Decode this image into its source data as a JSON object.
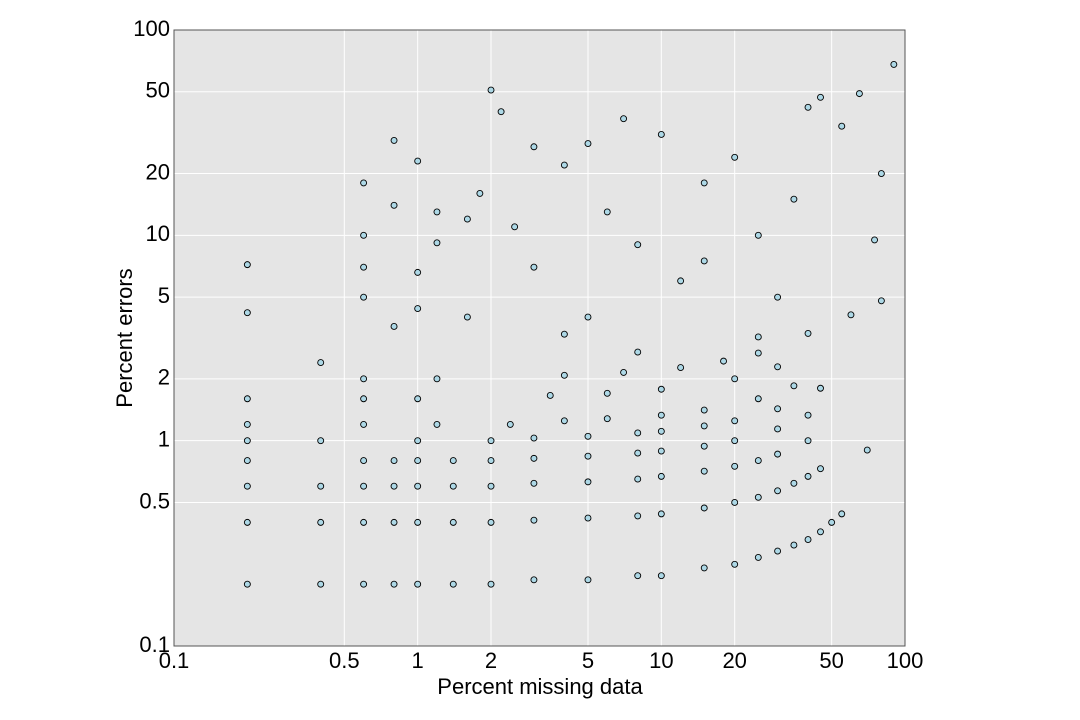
{
  "chart_data": {
    "type": "scatter",
    "x_label": "Percent missing data",
    "y_label": "Percent errors",
    "xscale": "log",
    "yscale": "log",
    "grid": true,
    "color": "#add8e6",
    "xlim": [
      0.1,
      100
    ],
    "ylim": [
      0.1,
      100
    ],
    "xticks": [
      0.1,
      0.5,
      1,
      2,
      5,
      10,
      20,
      50,
      100
    ],
    "yticks": [
      0.1,
      0.5,
      1,
      2,
      5,
      10,
      20,
      50,
      100
    ],
    "x": [
      0.2,
      0.4,
      0.6,
      0.8,
      1,
      1.4,
      2,
      3,
      5,
      8,
      10,
      15,
      20,
      25,
      30,
      35,
      40,
      45,
      50,
      55,
      0.2,
      0.4,
      0.6,
      0.8,
      1,
      1.4,
      2,
      3,
      5,
      8,
      10,
      15,
      20,
      25,
      30,
      35,
      40,
      45,
      0.2,
      0.4,
      0.6,
      0.8,
      1,
      1.4,
      2,
      3,
      5,
      8,
      10,
      15,
      20,
      25,
      30,
      40,
      0.2,
      0.6,
      0.8,
      1,
      1.4,
      2,
      3,
      5,
      8,
      10,
      15,
      20,
      30,
      40,
      0.2,
      0.4,
      1,
      2,
      3,
      5,
      8,
      10,
      15,
      20,
      30,
      45,
      0.2,
      0.6,
      1.2,
      2.4,
      4,
      6,
      10,
      15,
      25,
      35,
      0.2,
      0.6,
      1,
      3.5,
      6,
      10,
      20,
      30,
      0.6,
      1.2,
      4,
      7,
      12,
      18,
      25,
      40,
      0.2,
      0.2,
      0.4,
      0.6,
      0.6,
      0.6,
      0.6,
      0.8,
      0.8,
      0.8,
      1,
      1,
      1,
      1.2,
      1.2,
      1.6,
      1.6,
      1.8,
      2,
      2.2,
      2.5,
      3,
      3,
      4,
      5,
      5,
      6,
      7,
      8,
      10,
      12,
      15,
      20,
      25,
      30,
      40,
      45,
      55,
      65,
      90,
      75,
      80,
      80,
      70,
      60,
      35,
      25,
      15,
      8,
      4
    ],
    "values": [
      0.2,
      0.2,
      0.2,
      0.2,
      0.2,
      0.2,
      0.2,
      0.21,
      0.21,
      0.22,
      0.22,
      0.24,
      0.25,
      0.27,
      0.29,
      0.31,
      0.33,
      0.36,
      0.4,
      0.44,
      0.4,
      0.4,
      0.4,
      0.4,
      0.4,
      0.4,
      0.4,
      0.41,
      0.42,
      0.43,
      0.44,
      0.47,
      0.5,
      0.53,
      0.57,
      0.62,
      0.67,
      0.73,
      0.6,
      0.6,
      0.6,
      0.6,
      0.6,
      0.6,
      0.6,
      0.62,
      0.63,
      0.65,
      0.67,
      0.71,
      0.75,
      0.8,
      0.86,
      1.0,
      0.8,
      0.8,
      0.8,
      0.8,
      0.8,
      0.8,
      0.82,
      0.84,
      0.87,
      0.89,
      0.94,
      1.0,
      1.14,
      1.33,
      1,
      1,
      1,
      1,
      1.03,
      1.05,
      1.09,
      1.11,
      1.18,
      1.25,
      1.43,
      1.8,
      1.2,
      1.2,
      1.2,
      1.2,
      1.25,
      1.28,
      1.33,
      1.41,
      1.6,
      1.85,
      1.6,
      1.6,
      1.6,
      1.66,
      1.7,
      1.78,
      2,
      2.29,
      2,
      2,
      2.08,
      2.15,
      2.27,
      2.44,
      2.67,
      3.33,
      4.2,
      7.2,
      2.4,
      5,
      7,
      10,
      18,
      3.6,
      14,
      29,
      4.4,
      6.6,
      23,
      9.2,
      13,
      4,
      12,
      16,
      51,
      40,
      11,
      27,
      7,
      22,
      28,
      4,
      13,
      37,
      9,
      31,
      6,
      18,
      24,
      10,
      5,
      42,
      47,
      34,
      49,
      68,
      9.5,
      20,
      4.8,
      0.9,
      4.1,
      15,
      3.2,
      7.5,
      2.7,
      3.3
    ]
  }
}
